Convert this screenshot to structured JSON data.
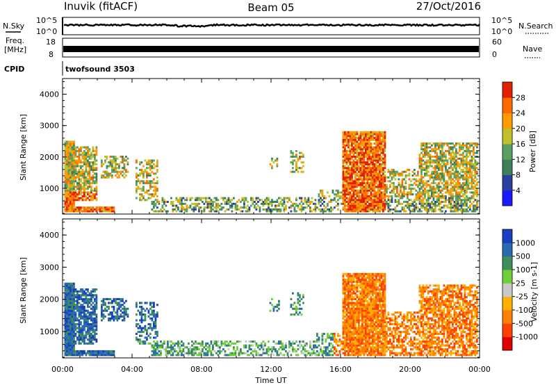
{
  "header": {
    "station": "Inuvik (fitACF)",
    "beam": "Beam 05",
    "date": "27/Oct/2016"
  },
  "noise_panel": {
    "left_label": "N.Sky",
    "left_ticks": [
      "10^5",
      "10^0"
    ],
    "right_label": "N.Search",
    "right_ticks": [
      "10^5",
      "10^0"
    ]
  },
  "freq_panel": {
    "left_label_line1": "Freq.",
    "left_label_line2": "[MHz]",
    "left_ticks": [
      "18",
      "8"
    ],
    "right_label": "Nave",
    "right_ticks": [
      "60",
      "0"
    ]
  },
  "cpid": {
    "label": "CPID",
    "value": "twofsound 3503"
  },
  "colors": {
    "power_scale": [
      "#1a1aff",
      "#2a3fa0",
      "#3f7f5a",
      "#5aa060",
      "#c0c02a",
      "#ff9a00",
      "#ff6a00",
      "#e02000"
    ],
    "velocity_scale": [
      "#1a3fbf",
      "#2a6ab0",
      "#3f8f5a",
      "#6fcf3a",
      "#c8c8c8",
      "#ffb000",
      "#ff8000",
      "#ff4000",
      "#e00000"
    ]
  },
  "chart_data": [
    {
      "type": "heatmap",
      "title": "",
      "quantity": "power",
      "ylabel": "Slant Range [km]",
      "ylim": [
        180,
        4500
      ],
      "y_ticks": [
        1000,
        2000,
        3000,
        4000
      ],
      "y_tick_labels": [
        "1000",
        "2000",
        "3000",
        "4000"
      ],
      "colorbar_label": "Power [dB]",
      "colorbar_ticks": [
        "4",
        "8",
        "12",
        "16",
        "20",
        "24",
        "28"
      ],
      "x_hours_range": [
        0,
        24
      ],
      "x_tick_labels": [
        "00:00",
        "04:00",
        "08:00",
        "12:00",
        "16:00",
        "20:00",
        "00:00"
      ]
    },
    {
      "type": "heatmap",
      "title": "",
      "quantity": "velocity",
      "ylabel": "Slant Range [km]",
      "ylim": [
        180,
        4500
      ],
      "y_ticks": [
        1000,
        2000,
        3000,
        4000
      ],
      "y_tick_labels": [
        "1000",
        "2000",
        "3000",
        "4000"
      ],
      "colorbar_label": "Velocity [m s-1]",
      "colorbar_ticks": [
        "1000",
        "500",
        "100",
        "25",
        "-25",
        "-100",
        "-500",
        "-1000"
      ],
      "x_hours_range": [
        0,
        24
      ],
      "x_tick_labels": [
        "00:00",
        "04:00",
        "08:00",
        "12:00",
        "16:00",
        "20:00",
        "00:00"
      ],
      "xlabel": "Time UT"
    }
  ]
}
